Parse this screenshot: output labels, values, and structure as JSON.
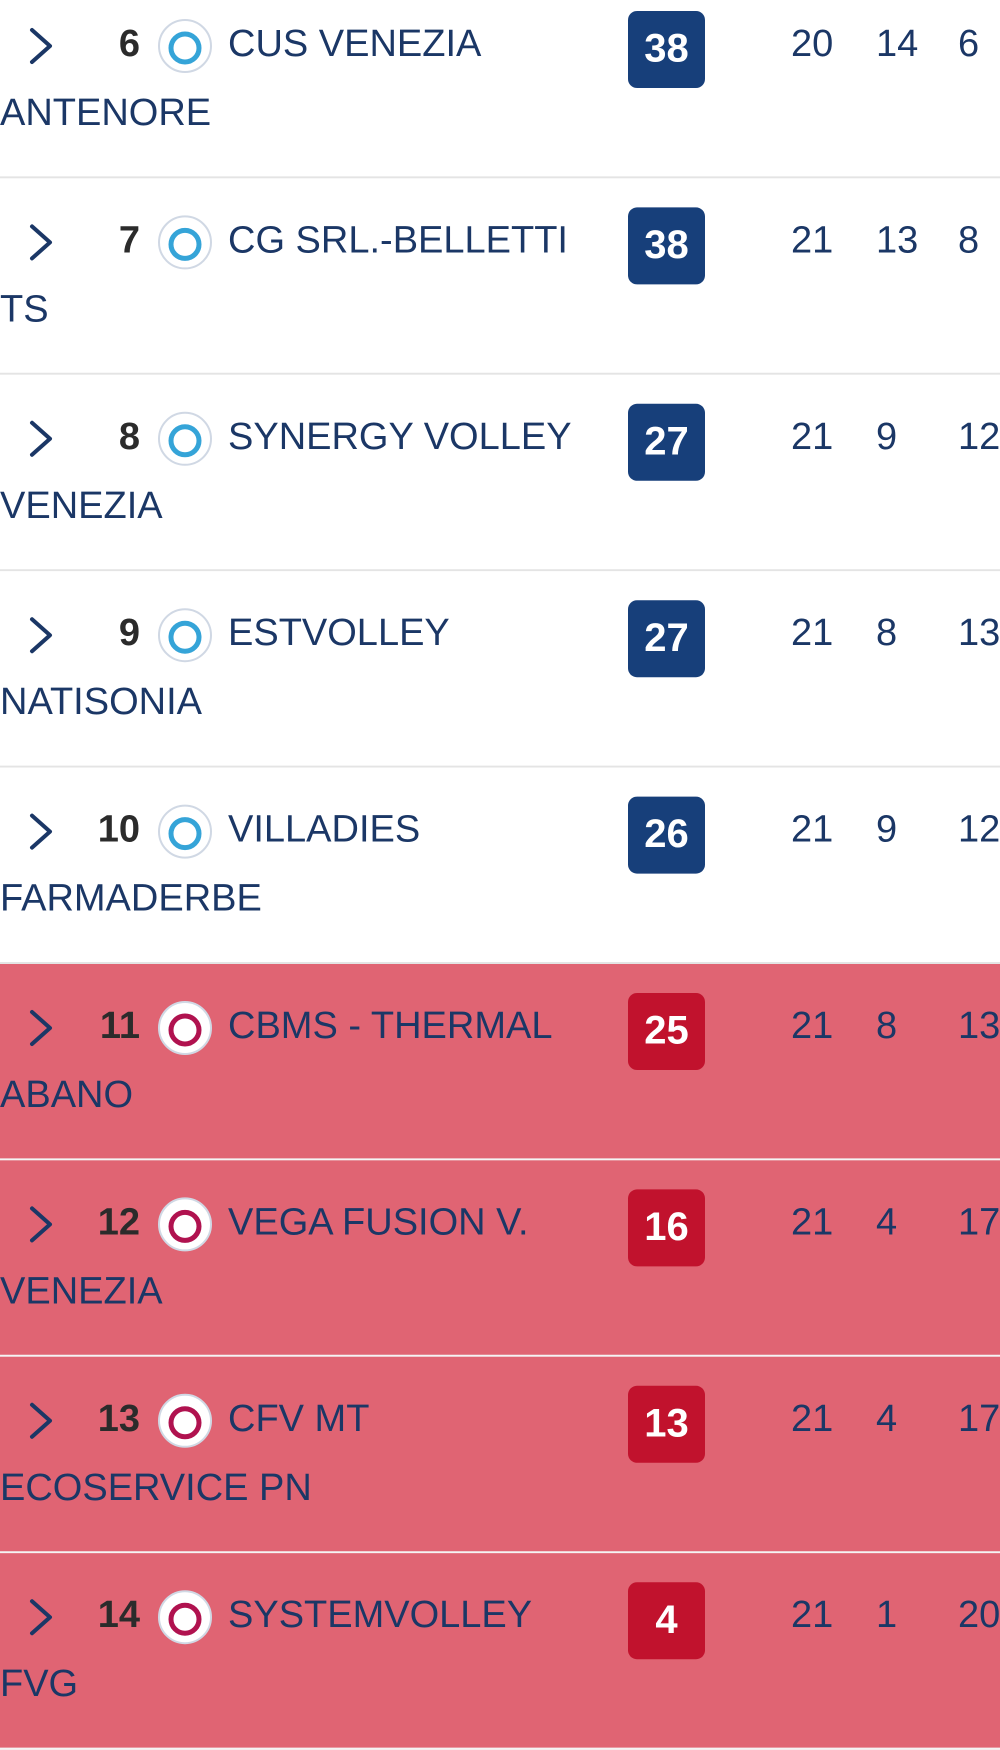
{
  "table": {
    "rows": [
      {
        "rank": 6,
        "name": [
          "CUS VENEZIA",
          "ANTENORE"
        ],
        "points": 38,
        "stats": [
          20,
          14,
          6
        ],
        "background": "#ffffff",
        "badge_color": "#173f7a"
      },
      {
        "rank": 7,
        "name": [
          "CG SRL.-BELLETTI",
          "TS"
        ],
        "points": 38,
        "stats": [
          21,
          13,
          8
        ],
        "background": "#ffffff",
        "badge_color": "#173f7a"
      },
      {
        "rank": 8,
        "name": [
          "SYNERGY VOLLEY",
          "VENEZIA"
        ],
        "points": 27,
        "stats": [
          21,
          9,
          12
        ],
        "background": "#ffffff",
        "badge_color": "#173f7a"
      },
      {
        "rank": 9,
        "name": [
          "ESTVOLLEY",
          "NATISONIA"
        ],
        "points": 27,
        "stats": [
          21,
          8,
          13
        ],
        "background": "#ffffff",
        "badge_color": "#173f7a"
      },
      {
        "rank": 10,
        "name": [
          "VILLADIES",
          "FARMADERBE"
        ],
        "points": 26,
        "stats": [
          21,
          9,
          12
        ],
        "background": "#ffffff",
        "badge_color": "#173f7a"
      },
      {
        "rank": 11,
        "name": [
          "CBMS - THERMAL",
          "ABANO"
        ],
        "points": 25,
        "stats": [
          21,
          8,
          13
        ],
        "background": "#e06473",
        "badge_color": "#c1122d"
      },
      {
        "rank": 12,
        "name": [
          "VEGA FUSION V.",
          "VENEZIA"
        ],
        "points": 16,
        "stats": [
          21,
          4,
          17
        ],
        "background": "#e06473",
        "badge_color": "#c1122d"
      },
      {
        "rank": 13,
        "name": [
          "CFV MT",
          "ECOSERVICE PN"
        ],
        "points": 13,
        "stats": [
          21,
          4,
          17
        ],
        "background": "#e06473",
        "badge_color": "#c1122d"
      },
      {
        "rank": 14,
        "name": [
          "SYSTEMVOLLEY",
          "FVG"
        ],
        "points": 4,
        "stats": [
          21,
          1,
          20
        ],
        "background": "#e06473",
        "badge_color": "#c1122d"
      }
    ]
  }
}
